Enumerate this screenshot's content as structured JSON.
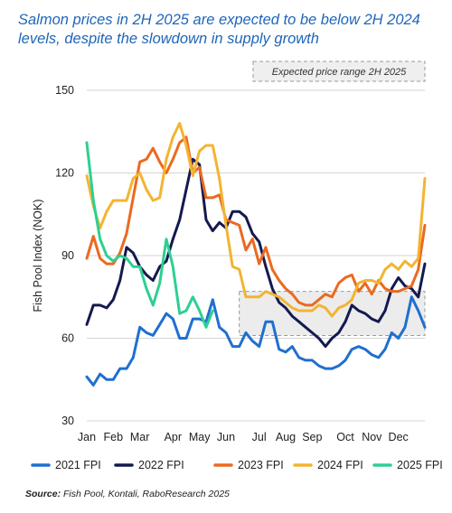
{
  "title": "Salmon prices in 2H 2025 are expected to be below 2H 2024 levels, despite the slowdown in supply growth",
  "source_label": "Source:",
  "source_text": "Fish Pool, Kontali, RaboResearch 2025",
  "chart_data": {
    "type": "line",
    "title": "Salmon prices in 2H 2025 are expected to be below 2H 2024 levels, despite the slowdown in supply growth",
    "ylabel": "Fish Pool Index (NOK)",
    "xlabel": "",
    "ylim": [
      30,
      150
    ],
    "yticks": [
      30,
      60,
      90,
      120,
      150
    ],
    "xlim": [
      1,
      52
    ],
    "x_tick_labels": [
      "Jan",
      "Feb",
      "Mar",
      "Apr",
      "May",
      "Jun",
      "Jul",
      "Aug",
      "Sep",
      "Oct",
      "Nov",
      "Dec"
    ],
    "x_tick_weeks": [
      1,
      5,
      9,
      14,
      18,
      22,
      27,
      31,
      35,
      40,
      44,
      48
    ],
    "x_unit": "week of year",
    "grid": "horizontal",
    "legend_position": "bottom",
    "annotation": {
      "label": "Expected price range 2H 2025",
      "x_range": [
        24,
        52
      ],
      "y_range": [
        61,
        77
      ]
    },
    "series": [
      {
        "name": "2021 FPI",
        "color": "#1f6fd1",
        "values": [
          46,
          43,
          47,
          45,
          45,
          49,
          49,
          53,
          64,
          62,
          61,
          65,
          69,
          67,
          60,
          60,
          67,
          67,
          66,
          74,
          64,
          62,
          57,
          57,
          62,
          59,
          57,
          66,
          66,
          56,
          55,
          57,
          53,
          52,
          52,
          50,
          49,
          49,
          50,
          52,
          56,
          57,
          56,
          54,
          53,
          56,
          62,
          60,
          64,
          75,
          70,
          64
        ]
      },
      {
        "name": "2022 FPI",
        "color": "#141a4e",
        "values": [
          65,
          72,
          72,
          71,
          74,
          81,
          93,
          91,
          86,
          83,
          81,
          86,
          88,
          96,
          103,
          114,
          125,
          123,
          103,
          99,
          102,
          100,
          106,
          106,
          104,
          98,
          95,
          86,
          78,
          73,
          71,
          68,
          66,
          64,
          62,
          60,
          57,
          60,
          62,
          66,
          72,
          70,
          69,
          67,
          66,
          70,
          78,
          82,
          79,
          78,
          75,
          87
        ]
      },
      {
        "name": "2023 FPI",
        "color": "#ea6a20",
        "values": [
          89,
          97,
          89,
          87,
          87,
          91,
          98,
          111,
          124,
          125,
          129,
          124,
          120,
          125,
          131,
          133,
          120,
          122,
          111,
          111,
          112,
          103,
          102,
          101,
          92,
          96,
          87,
          93,
          85,
          81,
          78,
          76,
          73,
          72,
          72,
          74,
          76,
          75,
          80,
          82,
          83,
          77,
          80,
          76,
          81,
          78,
          77,
          77,
          78,
          79,
          85,
          101
        ]
      },
      {
        "name": "2024 FPI",
        "color": "#f3b431",
        "values": [
          119,
          108,
          100,
          106,
          110,
          110,
          110,
          118,
          120,
          114,
          110,
          111,
          125,
          133,
          138,
          130,
          119,
          128,
          130,
          130,
          118,
          101,
          86,
          85,
          75,
          75,
          75,
          77,
          76,
          75,
          73,
          71,
          70,
          70,
          70,
          72,
          71,
          68,
          71,
          72,
          74,
          80,
          81,
          81,
          80,
          85,
          87,
          85,
          88,
          86,
          89,
          118
        ]
      },
      {
        "name": "2025 FPI",
        "color": "#2ecf92",
        "values": [
          131,
          110,
          96,
          90,
          88,
          90,
          89,
          86,
          86,
          78,
          72,
          80,
          96,
          86,
          69,
          70,
          75,
          70,
          64,
          70
        ]
      }
    ]
  }
}
